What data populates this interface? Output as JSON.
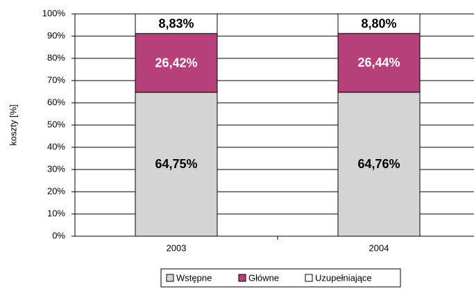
{
  "chart_data": {
    "type": "stacked_bar",
    "y_label": "koszty [%]",
    "categories": [
      "2003",
      "2004"
    ],
    "series": [
      {
        "name": "Wstępne",
        "color": "#d4d4d4",
        "values": [
          64.75,
          64.76
        ],
        "value_labels": [
          "64,75%",
          "64,76%"
        ]
      },
      {
        "name": "Główne",
        "color": "#b5407a",
        "values": [
          26.42,
          26.44
        ],
        "value_labels": [
          "26,42%",
          "26,44%"
        ]
      },
      {
        "name": "Uzupełniające",
        "color": "#ffffff",
        "values": [
          8.83,
          8.8
        ],
        "value_labels": [
          "8,83%",
          "8,80%"
        ]
      }
    ],
    "ylim": [
      0,
      100
    ],
    "yticks": [
      {
        "value": 0,
        "label": "0%"
      },
      {
        "value": 10,
        "label": "10%"
      },
      {
        "value": 20,
        "label": "20%"
      },
      {
        "value": 30,
        "label": "30%"
      },
      {
        "value": 40,
        "label": "40%"
      },
      {
        "value": 50,
        "label": "50%"
      },
      {
        "value": 60,
        "label": "60%"
      },
      {
        "value": 70,
        "label": "70%"
      },
      {
        "value": 80,
        "label": "80%"
      },
      {
        "value": 90,
        "label": "90%"
      },
      {
        "value": 100,
        "label": "100%"
      }
    ],
    "grid": true,
    "legend": "bottom"
  }
}
